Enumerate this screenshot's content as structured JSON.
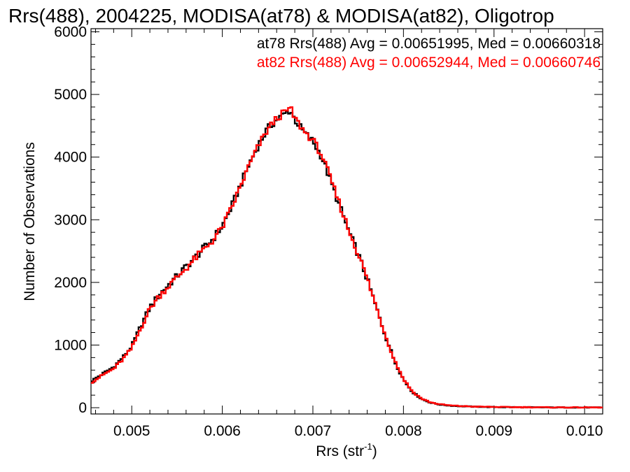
{
  "chart_data": {
    "type": "line",
    "title": "Rrs(488), 2004225, MODISA(at78) & MODISA(at82), Oligotrop",
    "xlabel": "Rrs (str",
    "xlabel_sup": "-1",
    "xlabel_close": ")",
    "ylabel": "Number of Observations",
    "xlim": [
      0.00455,
      0.0102
    ],
    "ylim": [
      -100,
      6050
    ],
    "xticks": [
      0.005,
      0.006,
      0.007,
      0.008,
      0.009,
      0.01
    ],
    "xtick_labels": [
      "0.005",
      "0.006",
      "0.007",
      "0.008",
      "0.009",
      "0.010"
    ],
    "yticks": [
      0,
      1000,
      2000,
      3000,
      4000,
      5000,
      6000
    ],
    "ytick_labels": [
      "0",
      "1000",
      "2000",
      "3000",
      "4000",
      "5000",
      "6000"
    ],
    "legend_placement": "top-right",
    "series": [
      {
        "name": "at78 Rrs(488) Avg = 0.00651995, Med = 0.00660318",
        "color": "#000000",
        "x": [
          0.00455,
          0.0047,
          0.0048,
          0.0049,
          0.005,
          0.0051,
          0.0052,
          0.0053,
          0.0054,
          0.0055,
          0.0056,
          0.0057,
          0.0058,
          0.0059,
          0.006,
          0.0061,
          0.0062,
          0.0063,
          0.0064,
          0.0065,
          0.0066,
          0.00675,
          0.0068,
          0.0069,
          0.007,
          0.0071,
          0.0072,
          0.0073,
          0.0074,
          0.0075,
          0.0076,
          0.0077,
          0.0078,
          0.0079,
          0.008,
          0.0081,
          0.0082,
          0.0083,
          0.0084,
          0.0085,
          0.0086,
          0.0087,
          0.0088,
          0.009,
          0.0092,
          0.0095,
          0.01,
          0.0102
        ],
        "y": [
          420,
          560,
          650,
          800,
          980,
          1300,
          1600,
          1800,
          1950,
          2100,
          2250,
          2400,
          2550,
          2700,
          2900,
          3200,
          3550,
          3900,
          4200,
          4450,
          4600,
          4750,
          4600,
          4400,
          4250,
          4000,
          3600,
          3200,
          2800,
          2450,
          2050,
          1600,
          1150,
          750,
          450,
          250,
          140,
          80,
          50,
          35,
          25,
          20,
          15,
          10,
          8,
          5,
          3,
          2
        ]
      },
      {
        "name": "at82 Rrs(488) Avg = 0.00652944, Med = 0.00660746",
        "color": "#ff0000",
        "x": [
          0.00455,
          0.0047,
          0.0048,
          0.0049,
          0.005,
          0.0051,
          0.0052,
          0.0053,
          0.0054,
          0.0055,
          0.0056,
          0.0057,
          0.0058,
          0.0059,
          0.006,
          0.0061,
          0.0062,
          0.0063,
          0.0064,
          0.0065,
          0.0066,
          0.00675,
          0.0068,
          0.0069,
          0.007,
          0.0071,
          0.0072,
          0.0073,
          0.0074,
          0.0075,
          0.0076,
          0.0077,
          0.0078,
          0.0079,
          0.008,
          0.0081,
          0.0082,
          0.0083,
          0.0084,
          0.0085,
          0.0086,
          0.0087,
          0.0088,
          0.009,
          0.0092,
          0.0095,
          0.01,
          0.0102
        ],
        "y": [
          400,
          540,
          620,
          770,
          950,
          1270,
          1580,
          1780,
          1930,
          2080,
          2230,
          2380,
          2530,
          2680,
          2880,
          3180,
          3530,
          3880,
          4180,
          4440,
          4620,
          4780,
          4620,
          4420,
          4270,
          4030,
          3630,
          3230,
          2820,
          2460,
          2060,
          1610,
          1160,
          760,
          460,
          255,
          145,
          85,
          55,
          38,
          28,
          22,
          17,
          12,
          9,
          6,
          4,
          3
        ]
      }
    ]
  }
}
